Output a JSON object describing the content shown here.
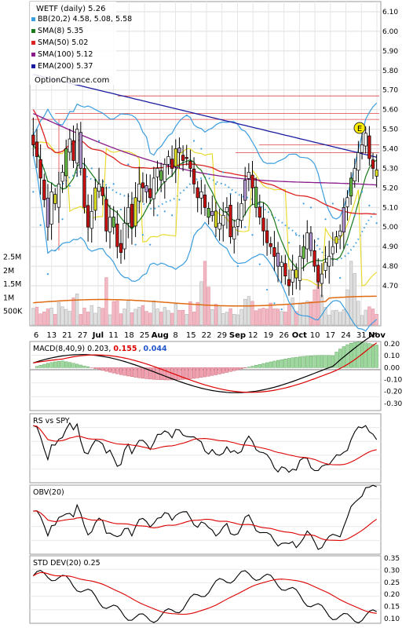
{
  "title": "WETF (daily) 5.26",
  "watermark": "OptionChance.com",
  "legend": [
    {
      "label": "BB(20,2) 4.58, 5.08, 5.58",
      "color": "#3a9ee0"
    },
    {
      "label": "SMA(8) 5.35",
      "color": "#1a7a1a"
    },
    {
      "label": "SMA(50) 5.02",
      "color": "#dd2222"
    },
    {
      "label": "SMA(100) 5.12",
      "color": "#8a1a8a"
    },
    {
      "label": "EMA(200) 5.37",
      "color": "#1a1aa0"
    }
  ],
  "earnings_marker": "E",
  "price_axis": [
    "6.10",
    "6.00",
    "5.90",
    "5.80",
    "5.70",
    "5.60",
    "5.50",
    "5.40",
    "5.30",
    "5.20",
    "5.10",
    "5.00",
    "4.90",
    "4.80",
    "4.70"
  ],
  "volume_axis": [
    "2.5M",
    "2M",
    "1.5M",
    "1M",
    "500K"
  ],
  "date_labels": [
    "6",
    "13",
    "21",
    "27",
    "Jul",
    "11",
    "18",
    "25",
    "Aug",
    "8",
    "15",
    "22",
    "29",
    "Sep",
    "12",
    "19",
    "26",
    "Oct",
    "10",
    "17",
    "24",
    "31",
    "Nov"
  ],
  "macd": {
    "label": "MACD(8,40,9) 0.203,",
    "v1": "0.155",
    "v2": "0.044",
    "v1_color": "#dd0000",
    "v2_color": "#2255cc",
    "axis": [
      "0.20",
      "0.10",
      "0.00",
      "-0.10",
      "-0.20",
      "-0.30"
    ]
  },
  "rs": {
    "label": "RS vs SPY"
  },
  "obv": {
    "label": "OBV(20)"
  },
  "std": {
    "label": "STD DEV(20) 0.25",
    "axis": [
      "0.35",
      "0.30",
      "0.25",
      "0.20",
      "0.15",
      "0.10"
    ]
  },
  "chart_data": {
    "type": "candlestick",
    "ticker": "WETF",
    "ylim": [
      4.62,
      6.16
    ],
    "close_approx": [
      5.42,
      5.36,
      5.25,
      5.14,
      5.0,
      5.18,
      5.12,
      5.22,
      5.28,
      5.4,
      5.45,
      5.34,
      5.5,
      5.3,
      5.1,
      5.0,
      5.08,
      5.2,
      5.22,
      5.16,
      4.98,
      5.05,
      5.0,
      4.9,
      4.87,
      5.02,
      5.1,
      5.0,
      5.15,
      5.22,
      5.2,
      5.18,
      5.15,
      5.25,
      5.3,
      5.24,
      5.32,
      5.36,
      5.3,
      5.4,
      5.38,
      5.34,
      5.35,
      5.3,
      5.22,
      5.15,
      5.18,
      5.1,
      5.05,
      5.08,
      5.0,
      5.02,
      5.06,
      5.1,
      4.95,
      5.0,
      5.04,
      5.12,
      5.24,
      5.28,
      5.2,
      5.1,
      5.05,
      4.98,
      4.92,
      4.9,
      4.85,
      4.8,
      4.82,
      4.75,
      4.7,
      4.78,
      4.74,
      4.85,
      4.9,
      4.97,
      4.88,
      4.8,
      4.72,
      4.76,
      4.82,
      4.85,
      4.9,
      4.95,
      4.98,
      5.1,
      5.15,
      5.25,
      5.3,
      5.38,
      5.42,
      5.48,
      5.35,
      5.3,
      5.26
    ],
    "bollinger": {
      "upper": 5.58,
      "middle": 5.08,
      "lower": 4.58
    },
    "sma8": 5.35,
    "sma50": 5.02,
    "sma100": 5.12,
    "ema200": 5.37,
    "macd": {
      "macd": 0.203,
      "signal": 0.155,
      "histogram": 0.044,
      "ylim": [
        -0.36,
        0.22
      ]
    },
    "std_dev": {
      "value": 0.25,
      "ylim": [
        0.08,
        0.36
      ]
    }
  }
}
